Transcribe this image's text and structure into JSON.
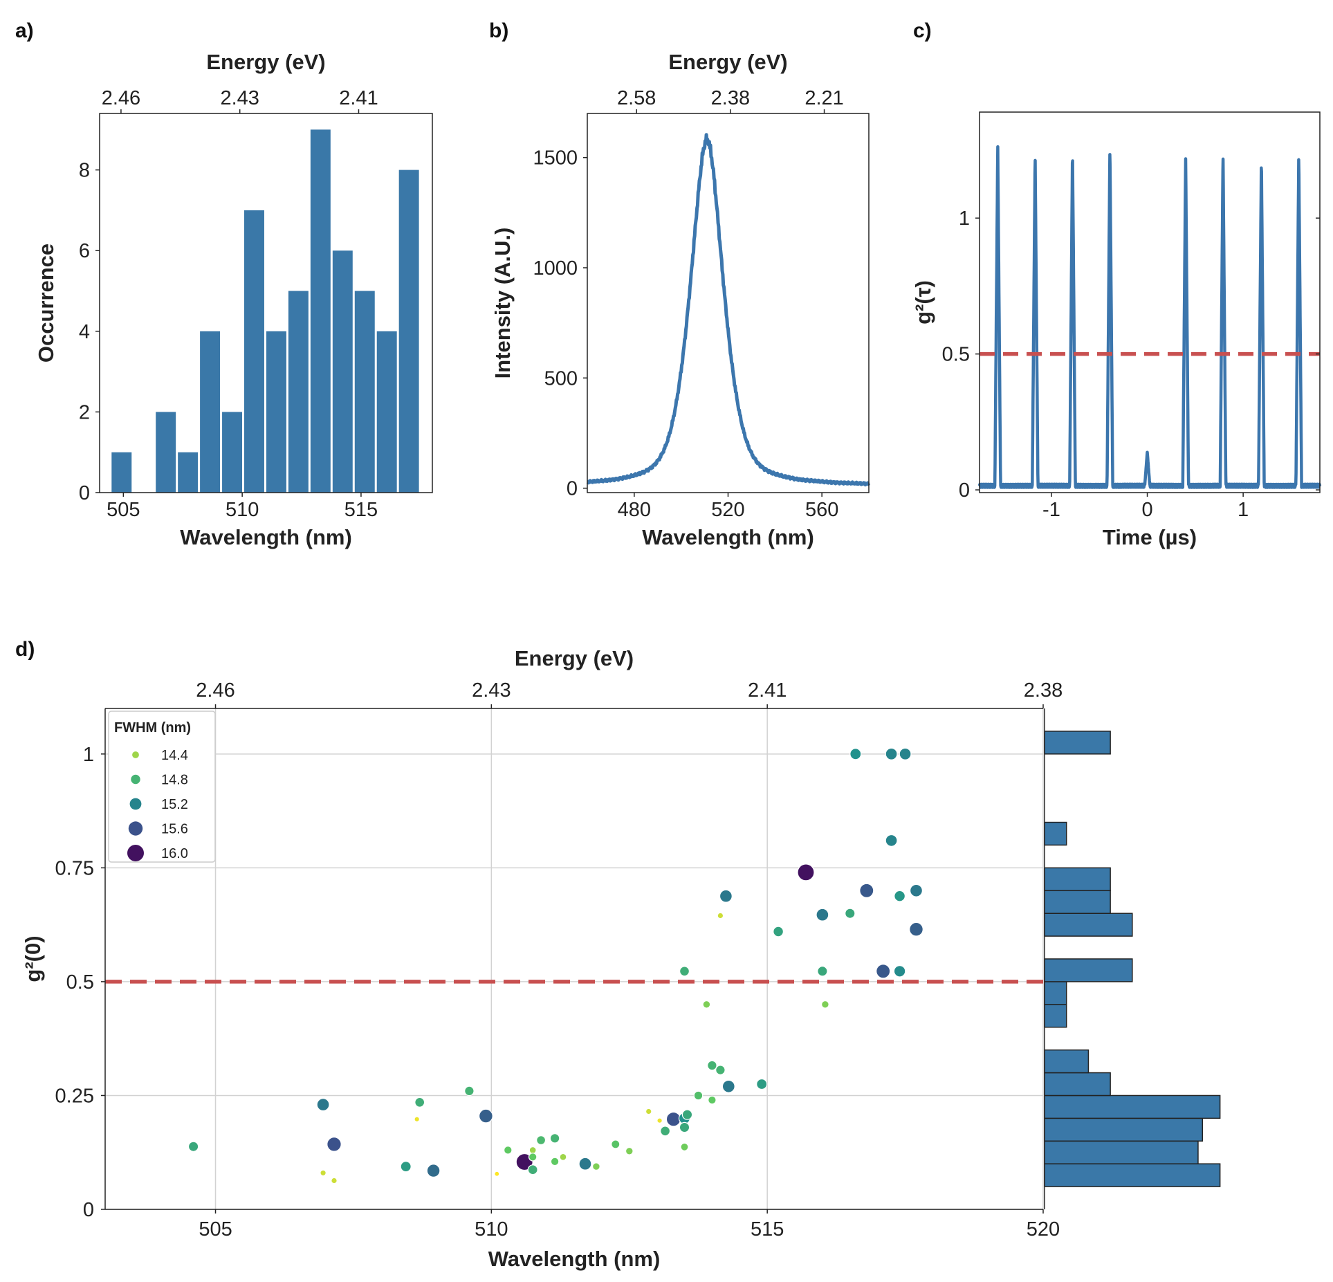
{
  "colors": {
    "bar": "#3a78a8",
    "line": "#3c76ad",
    "dash": "#c85050",
    "grid": "#d2d2d2",
    "axis": "#222222"
  },
  "chart_data": [
    {
      "id": "a",
      "label": "a)",
      "type": "bar",
      "xlabel": "Wavelength (nm)",
      "ylabel": "Occurrence",
      "top_label": "Energy (eV)",
      "xlim": [
        504,
        518
      ],
      "ylim": [
        0,
        9.4
      ],
      "xticks": [
        505,
        510,
        515
      ],
      "yticks": [
        0,
        2,
        4,
        6,
        8
      ],
      "top_ticks": [
        {
          "pos": 504.9,
          "text": "2.46"
        },
        {
          "pos": 509.9,
          "text": "2.43"
        },
        {
          "pos": 514.9,
          "text": "2.41"
        }
      ],
      "bin_width": 0.93,
      "bins": [
        [
          504.46,
          1
        ],
        [
          505.39,
          0
        ],
        [
          506.32,
          2
        ],
        [
          507.25,
          1
        ],
        [
          508.18,
          4
        ],
        [
          509.11,
          2
        ],
        [
          510.04,
          7
        ],
        [
          510.97,
          4
        ],
        [
          511.9,
          5
        ],
        [
          512.83,
          9
        ],
        [
          513.76,
          6
        ],
        [
          514.69,
          5
        ],
        [
          515.62,
          4
        ],
        [
          516.55,
          8
        ]
      ]
    },
    {
      "id": "b",
      "label": "b)",
      "type": "line",
      "xlabel": "Wavelength (nm)",
      "ylabel": "Intensity (A.U.)",
      "top_label": "Energy (eV)",
      "xlim": [
        460,
        580
      ],
      "ylim": [
        -20,
        1700
      ],
      "xticks": [
        480,
        520,
        560
      ],
      "yticks": [
        0,
        500,
        1000,
        1500
      ],
      "top_ticks": [
        {
          "pos": 481,
          "text": "2.58"
        },
        {
          "pos": 521,
          "text": "2.38"
        },
        {
          "pos": 561,
          "text": "2.21"
        }
      ],
      "peak": {
        "center": 511,
        "amplitude": 1570,
        "fwhm": 15,
        "baseline": 10
      }
    },
    {
      "id": "c",
      "label": "c)",
      "type": "line",
      "xlabel": "Time (µs)",
      "ylabel": "g²(τ)",
      "xlim": [
        -1.75,
        1.8
      ],
      "ylim": [
        -0.01,
        1.39
      ],
      "xticks": [
        -1,
        0,
        1
      ],
      "yticks": [
        0,
        0.5,
        1
      ],
      "ytick_labels": [
        "0",
        "0.5",
        "1"
      ],
      "threshold": 0.5,
      "peaks": [
        {
          "t": -1.56,
          "h": 1.27
        },
        {
          "t": -1.17,
          "h": 1.24
        },
        {
          "t": -0.78,
          "h": 1.26
        },
        {
          "t": -0.39,
          "h": 1.27
        },
        {
          "t": 0,
          "h": 0.14
        },
        {
          "t": 0.4,
          "h": 1.23
        },
        {
          "t": 0.79,
          "h": 1.25
        },
        {
          "t": 1.19,
          "h": 1.23
        },
        {
          "t": 1.58,
          "h": 1.24
        }
      ],
      "peak_halfwidth": 0.03,
      "baseline": 0.015
    },
    {
      "id": "d",
      "label": "d)",
      "type": "scatter",
      "xlabel": "Wavelength (nm)",
      "ylabel": "g²(0)",
      "top_label": "Energy (eV)",
      "xlim": [
        503,
        520
      ],
      "ylim": [
        0,
        1.1
      ],
      "xticks": [
        505,
        510,
        515,
        520
      ],
      "yticks": [
        0,
        0.25,
        0.5,
        0.75,
        1
      ],
      "ytick_labels": [
        "0",
        "0.25",
        "0.5",
        "0.75",
        "1"
      ],
      "top_ticks": [
        {
          "pos": 505,
          "text": "2.46"
        },
        {
          "pos": 510,
          "text": "2.43"
        },
        {
          "pos": 515,
          "text": "2.41"
        },
        {
          "pos": 520,
          "text": "2.38"
        }
      ],
      "threshold": 0.5,
      "legend": {
        "title": "FWHM (nm)",
        "entries": [
          "14.4",
          "14.8",
          "15.2",
          "15.6",
          "16.0"
        ]
      },
      "fwhm_range": [
        14.1,
        16.1
      ],
      "points": [
        [
          504.6,
          0.138,
          14.9
        ],
        [
          506.95,
          0.23,
          15.3
        ],
        [
          507.15,
          0.143,
          15.6
        ],
        [
          506.95,
          0.08,
          14.25
        ],
        [
          507.15,
          0.063,
          14.25
        ],
        [
          508.45,
          0.094,
          15.0
        ],
        [
          508.7,
          0.235,
          14.85
        ],
        [
          508.65,
          0.198,
          14.15
        ],
        [
          508.95,
          0.085,
          15.4
        ],
        [
          509.6,
          0.26,
          14.8
        ],
        [
          509.9,
          0.205,
          15.5
        ],
        [
          510.3,
          0.13,
          14.6
        ],
        [
          510.1,
          0.078,
          14.1
        ],
        [
          510.6,
          0.104,
          16.0
        ],
        [
          510.75,
          0.13,
          14.4
        ],
        [
          510.75,
          0.115,
          14.6
        ],
        [
          510.75,
          0.087,
          14.85
        ],
        [
          510.9,
          0.152,
          14.75
        ],
        [
          511.15,
          0.156,
          14.8
        ],
        [
          511.15,
          0.105,
          14.6
        ],
        [
          511.3,
          0.115,
          14.4
        ],
        [
          511.7,
          0.1,
          15.3
        ],
        [
          511.9,
          0.094,
          14.5
        ],
        [
          512.25,
          0.143,
          14.65
        ],
        [
          512.5,
          0.128,
          14.5
        ],
        [
          512.85,
          0.215,
          14.25
        ],
        [
          513.05,
          0.195,
          14.15
        ],
        [
          513.15,
          0.172,
          14.85
        ],
        [
          513.3,
          0.198,
          15.6
        ],
        [
          513.5,
          0.2,
          15.1
        ],
        [
          513.5,
          0.18,
          14.9
        ],
        [
          513.5,
          0.137,
          14.55
        ],
        [
          513.5,
          0.523,
          14.85
        ],
        [
          513.55,
          0.208,
          14.9
        ],
        [
          513.75,
          0.25,
          14.7
        ],
        [
          513.9,
          0.45,
          14.5
        ],
        [
          514.0,
          0.24,
          14.6
        ],
        [
          514.0,
          0.316,
          14.8
        ],
        [
          514.15,
          0.306,
          14.8
        ],
        [
          514.15,
          0.645,
          14.25
        ],
        [
          514.25,
          0.688,
          15.3
        ],
        [
          514.3,
          0.27,
          15.3
        ],
        [
          514.9,
          0.275,
          15.0
        ],
        [
          515.2,
          0.61,
          14.95
        ],
        [
          515.7,
          0.74,
          16.0
        ],
        [
          516.0,
          0.523,
          14.9
        ],
        [
          516.0,
          0.647,
          15.3
        ],
        [
          516.05,
          0.45,
          14.5
        ],
        [
          516.5,
          0.65,
          14.9
        ],
        [
          516.6,
          1.0,
          15.1
        ],
        [
          516.8,
          0.7,
          15.55
        ],
        [
          517.1,
          0.523,
          15.55
        ],
        [
          517.25,
          1.0,
          15.2
        ],
        [
          517.25,
          0.81,
          15.2
        ],
        [
          517.4,
          0.688,
          15.05
        ],
        [
          517.4,
          0.523,
          15.15
        ],
        [
          517.5,
          1.0,
          15.2
        ],
        [
          517.7,
          0.7,
          15.3
        ],
        [
          517.7,
          0.615,
          15.5
        ]
      ],
      "marginal_hist": {
        "xmax": 12.3,
        "bins": [
          [
            0.05,
            0.1,
            8
          ],
          [
            0.1,
            0.15,
            7
          ],
          [
            0.15,
            0.2,
            7.2
          ],
          [
            0.2,
            0.25,
            8
          ],
          [
            0.25,
            0.3,
            3
          ],
          [
            0.3,
            0.35,
            2
          ],
          [
            0.4,
            0.45,
            1
          ],
          [
            0.45,
            0.5,
            1
          ],
          [
            0.5,
            0.55,
            4
          ],
          [
            0.6,
            0.65,
            4
          ],
          [
            0.65,
            0.7,
            3
          ],
          [
            0.7,
            0.75,
            3
          ],
          [
            0.8,
            0.85,
            1
          ],
          [
            1.0,
            1.05,
            3
          ]
        ]
      }
    }
  ]
}
